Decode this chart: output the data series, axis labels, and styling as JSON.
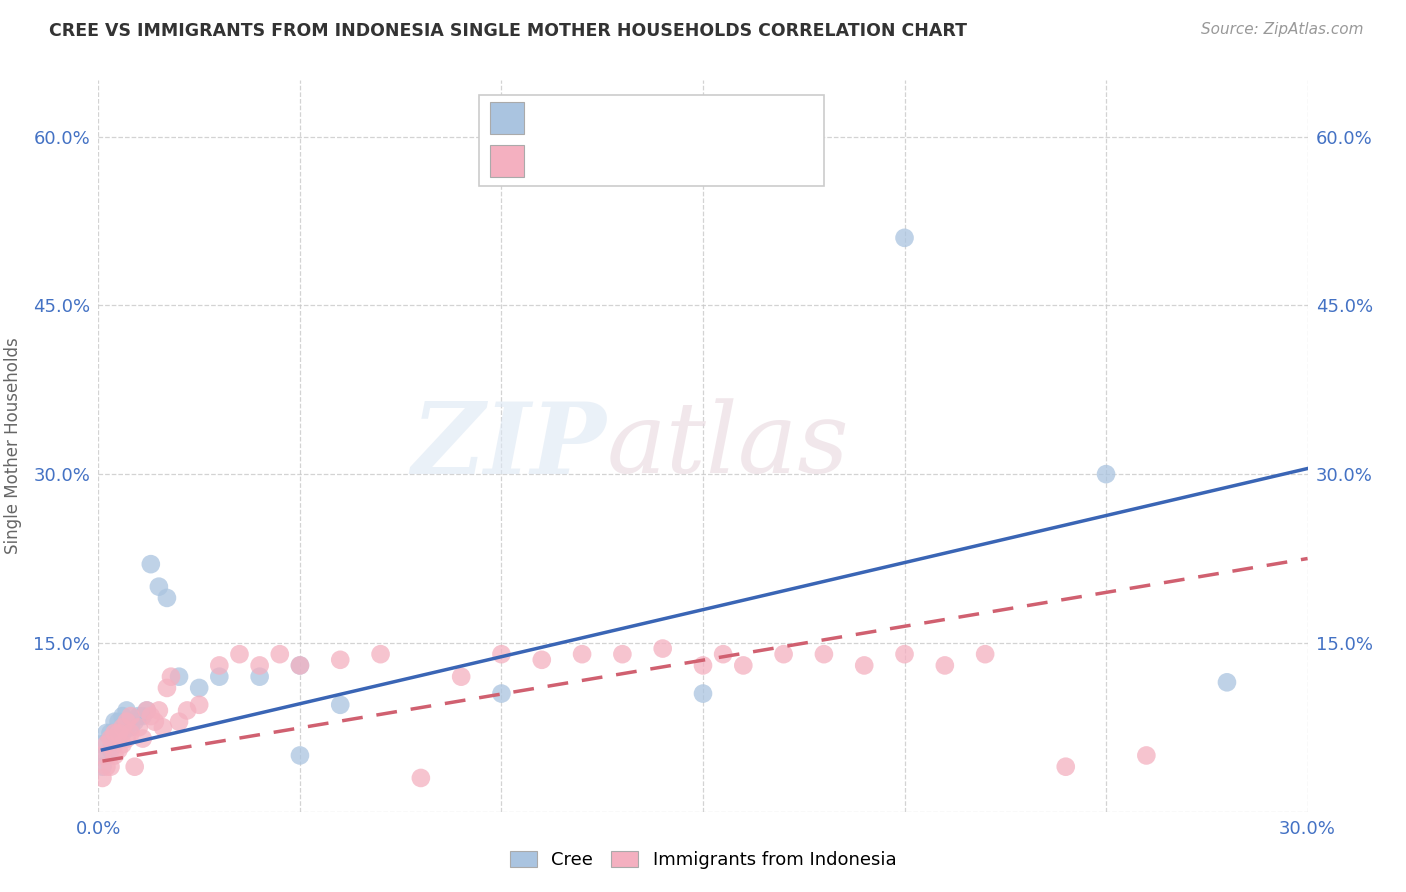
{
  "title": "CREE VS IMMIGRANTS FROM INDONESIA SINGLE MOTHER HOUSEHOLDS CORRELATION CHART",
  "source": "Source: ZipAtlas.com",
  "ylabel": "Single Mother Households",
  "xlim": [
    0.0,
    0.3
  ],
  "ylim": [
    0.0,
    0.65
  ],
  "xticks": [
    0.0,
    0.05,
    0.1,
    0.15,
    0.2,
    0.25,
    0.3
  ],
  "yticks": [
    0.0,
    0.15,
    0.3,
    0.45,
    0.6
  ],
  "ytick_labels": [
    "",
    "15.0%",
    "30.0%",
    "45.0%",
    "60.0%"
  ],
  "xtick_labels": [
    "0.0%",
    "",
    "",
    "",
    "",
    "",
    "30.0%"
  ],
  "background_color": "#ffffff",
  "plot_bg_color": "#ffffff",
  "grid_color": "#c8c8c8",
  "cree_color": "#aac4e0",
  "indonesia_color": "#f4b0c0",
  "cree_line_color": "#3a65b5",
  "indonesia_line_color": "#d06070",
  "cree_line_x0": 0.001,
  "cree_line_y0": 0.055,
  "cree_line_x1": 0.3,
  "cree_line_y1": 0.305,
  "indonesia_line_x0": 0.001,
  "indonesia_line_y0": 0.045,
  "indonesia_line_x1": 0.3,
  "indonesia_line_y1": 0.225,
  "cree_points_x": [
    0.001,
    0.001,
    0.002,
    0.002,
    0.003,
    0.003,
    0.004,
    0.004,
    0.005,
    0.005,
    0.005,
    0.006,
    0.006,
    0.007,
    0.007,
    0.008,
    0.009,
    0.01,
    0.011,
    0.012,
    0.013,
    0.015,
    0.017,
    0.02,
    0.025,
    0.03,
    0.04,
    0.05,
    0.06,
    0.1,
    0.15,
    0.2,
    0.25,
    0.28,
    0.05
  ],
  "cree_points_y": [
    0.04,
    0.06,
    0.05,
    0.07,
    0.055,
    0.07,
    0.06,
    0.08,
    0.065,
    0.07,
    0.08,
    0.07,
    0.085,
    0.075,
    0.09,
    0.075,
    0.08,
    0.085,
    0.085,
    0.09,
    0.22,
    0.2,
    0.19,
    0.12,
    0.11,
    0.12,
    0.12,
    0.13,
    0.095,
    0.105,
    0.105,
    0.51,
    0.3,
    0.115,
    0.05
  ],
  "indonesia_points_x": [
    0.001,
    0.001,
    0.002,
    0.002,
    0.003,
    0.003,
    0.004,
    0.004,
    0.005,
    0.005,
    0.006,
    0.006,
    0.007,
    0.007,
    0.008,
    0.008,
    0.009,
    0.01,
    0.011,
    0.012,
    0.013,
    0.014,
    0.015,
    0.016,
    0.017,
    0.018,
    0.02,
    0.022,
    0.025,
    0.03,
    0.035,
    0.04,
    0.045,
    0.05,
    0.06,
    0.07,
    0.08,
    0.09,
    0.1,
    0.11,
    0.12,
    0.13,
    0.14,
    0.15,
    0.155,
    0.16,
    0.17,
    0.18,
    0.19,
    0.2,
    0.21,
    0.22,
    0.24,
    0.26
  ],
  "indonesia_points_y": [
    0.03,
    0.05,
    0.04,
    0.06,
    0.04,
    0.065,
    0.05,
    0.07,
    0.055,
    0.07,
    0.06,
    0.075,
    0.065,
    0.08,
    0.07,
    0.085,
    0.04,
    0.075,
    0.065,
    0.09,
    0.085,
    0.08,
    0.09,
    0.075,
    0.11,
    0.12,
    0.08,
    0.09,
    0.095,
    0.13,
    0.14,
    0.13,
    0.14,
    0.13,
    0.135,
    0.14,
    0.03,
    0.12,
    0.14,
    0.135,
    0.14,
    0.14,
    0.145,
    0.13,
    0.14,
    0.13,
    0.14,
    0.14,
    0.13,
    0.14,
    0.13,
    0.14,
    0.04,
    0.05
  ]
}
